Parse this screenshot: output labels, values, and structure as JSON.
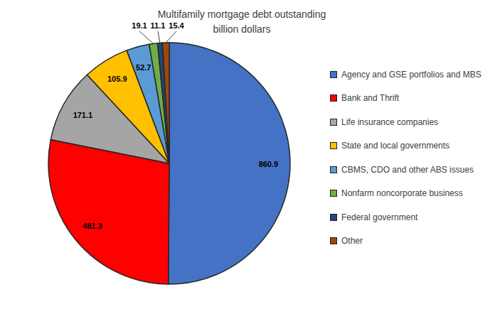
{
  "chart_data": {
    "type": "pie",
    "title": "Multifamily mortgage debt outstanding",
    "subtitle": "billion dollars",
    "categories": [
      "Agency and GSE portfolios and MBS",
      "Bank and Thrift",
      "Life insurance companies",
      "State and local governments",
      "CBMS, CDO and other ABS issues",
      "Nonfarm noncorporate business",
      "Federal government",
      "Other"
    ],
    "values": [
      860.9,
      481.3,
      171.1,
      105.9,
      52.7,
      19.1,
      11.1,
      15.4
    ],
    "colors": [
      "#4472c4",
      "#ff0000",
      "#a5a5a5",
      "#ffc000",
      "#5b9bd5",
      "#70ad47",
      "#264478",
      "#9e480e"
    ],
    "data_labels": true,
    "legend": "right"
  }
}
